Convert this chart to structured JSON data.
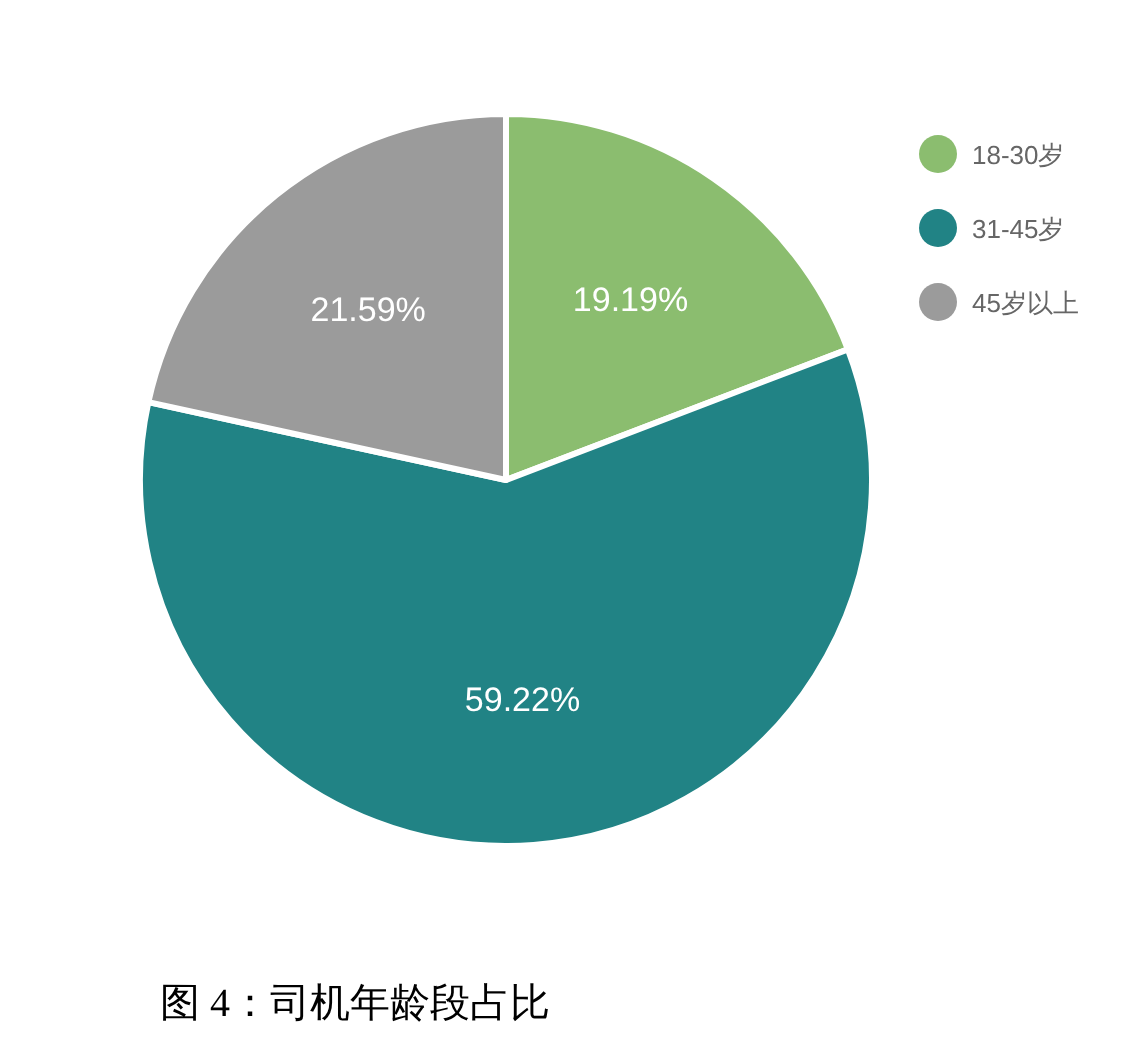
{
  "chart_data": {
    "type": "pie",
    "title": "图 4：司机年龄段占比",
    "categories": [
      "18-30岁",
      "31-45岁",
      "45岁以上"
    ],
    "values": [
      19.19,
      59.22,
      21.59
    ],
    "value_labels": [
      "19.19%",
      "59.22%",
      "21.59%"
    ],
    "colors": [
      "#8bbd6f",
      "#218385",
      "#9b9b9b"
    ],
    "legend": "top right"
  }
}
